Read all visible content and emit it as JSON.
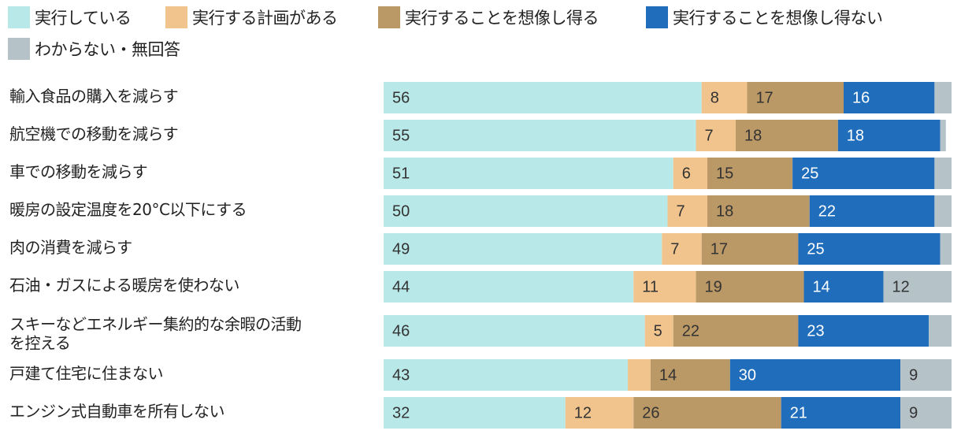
{
  "chart_data": {
    "type": "bar",
    "orientation": "horizontal",
    "stacked": true,
    "xlim": [
      0,
      100
    ],
    "legend_position": "top",
    "series": [
      {
        "name": "実行している",
        "color": "#b9e8e8",
        "values": [
          56,
          55,
          51,
          50,
          49,
          44,
          46,
          43,
          32
        ]
      },
      {
        "name": "実行する計画がある",
        "color": "#f1c48d",
        "values": [
          8,
          7,
          6,
          7,
          7,
          11,
          5,
          4,
          12
        ]
      },
      {
        "name": "実行することを想像し得る",
        "color": "#bb9966",
        "values": [
          17,
          18,
          15,
          18,
          17,
          19,
          22,
          14,
          26
        ]
      },
      {
        "name": "実行することを想像し得ない",
        "color": "#1f6dbb",
        "values": [
          16,
          18,
          25,
          22,
          25,
          14,
          23,
          30,
          21
        ]
      },
      {
        "name": "わからない・無回答",
        "color": "#b5c3c8",
        "values": [
          3,
          1,
          3,
          3,
          2,
          12,
          4,
          9,
          9
        ]
      }
    ],
    "value_labels": [
      [
        "56",
        "8",
        "17",
        "16",
        ""
      ],
      [
        "55",
        "7",
        "18",
        "18",
        ""
      ],
      [
        "51",
        "6",
        "15",
        "25",
        ""
      ],
      [
        "50",
        "7",
        "18",
        "22",
        ""
      ],
      [
        "49",
        "7",
        "17",
        "25",
        ""
      ],
      [
        "44",
        "11",
        "19",
        "14",
        "12"
      ],
      [
        "46",
        "5",
        "22",
        "23",
        ""
      ],
      [
        "43",
        "",
        "14",
        "30",
        "9"
      ],
      [
        "32",
        "12",
        "26",
        "21",
        "9"
      ]
    ],
    "categories": [
      [
        "輸入食品の購入を減らす"
      ],
      [
        "航空機での移動を減らす"
      ],
      [
        "車での移動を減らす"
      ],
      [
        "暖房の設定温度を20°C以下にする"
      ],
      [
        "肉の消費を減らす"
      ],
      [
        "石油・ガスによる暖房を使わない"
      ],
      [
        "スキーなどエネルギー集約的な余暇の活動",
        "を控える"
      ],
      [
        "戸建て住宅に住まない"
      ],
      [
        "エンジン式自動車を所有しない"
      ]
    ]
  }
}
